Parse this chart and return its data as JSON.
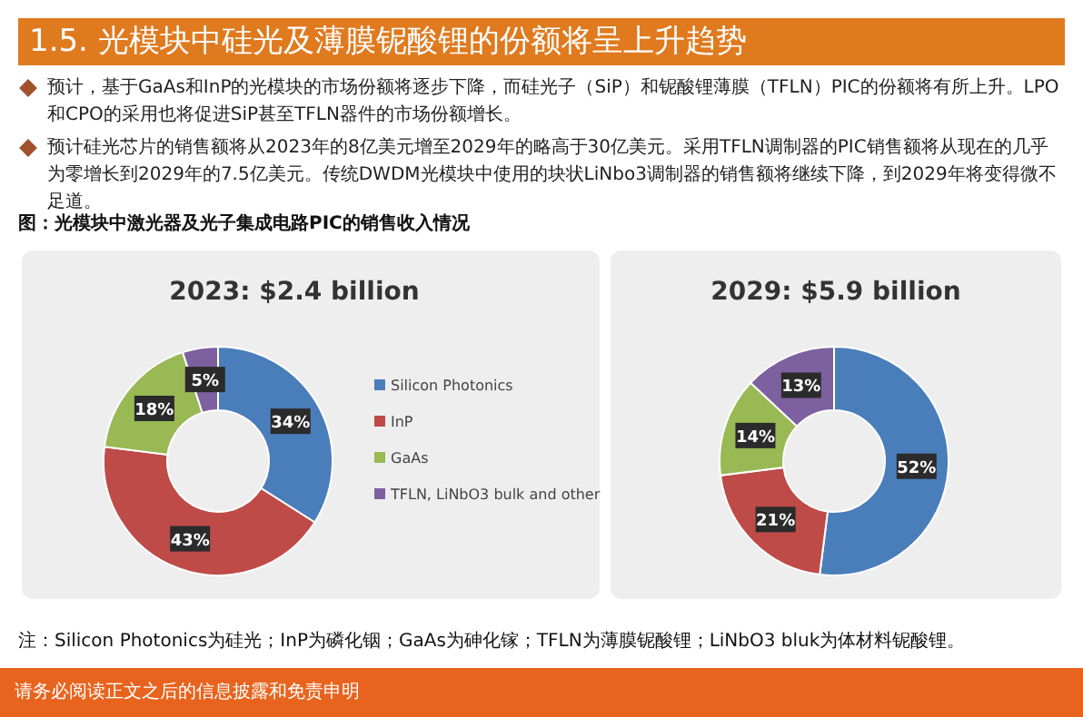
{
  "chart_data": [
    {
      "type": "donut",
      "title": "2023: $2.4 billion",
      "categories": [
        "Silicon Photonics",
        "InP",
        "GaAs",
        "TFLN, LiNbO3 bulk and other"
      ],
      "values": [
        34,
        43,
        18,
        5
      ],
      "value_labels": [
        "34%",
        "43%",
        "18%",
        "5%"
      ],
      "colors": [
        "#4a7ebb",
        "#be4b48",
        "#98b954",
        "#7d60a0"
      ],
      "legend": "right",
      "annotations": [
        "1.5. 光模块中硅光及薄膜铌酸锂的份额将呈上升趋势",
        "预计，基于GaAs和InP的光模块的市场份额将逐步下降，而硅光子（SiP）和铌酸锂薄膜（TFLN）PIC的份额将有所上升。LPO和CPO的采用也将促进SiP甚至TFLN器件的市场份额增长。",
        "预计硅光芯片的销售额将从2023年的8亿美元增至2029年的略高于30亿美元。采用TFLN调制器的PIC销售额将从现在的几乎为零增长到2029年的7.5亿美元。传统DWDM光模块中使用的块状LiNbo3调制器的销售额将继续下降，到2029年将变得微不足道。",
        "图：光模块中激光器及光子集成电路PIC的销售收入情况",
        "注：Silicon Photonics为硅光；InP为磷化铟；GaAs为砷化镓；TFLN为薄膜铌酸锂；LiNbO3 bluk为体材料铌酸锂。",
        "请务必阅读正文之后的信息披露和免责申明"
      ]
    },
    {
      "type": "donut",
      "title": "2029: $5.9 billion",
      "categories": [
        null,
        null,
        null,
        null
      ],
      "values": [
        52,
        21,
        14,
        13
      ],
      "value_labels": [
        "52%",
        "21%",
        "14%",
        "13%"
      ],
      "colors": [
        "#4a7ebb",
        "#be4b48",
        "#98b954",
        "#7d60a0"
      ]
    }
  ]
}
